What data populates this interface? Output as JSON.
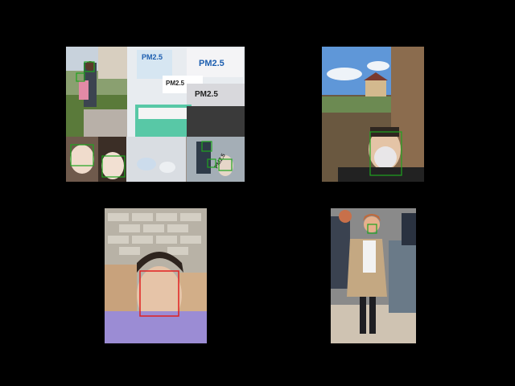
{
  "colors": {
    "background": "#000000",
    "box_mask": "#1fa51f",
    "box_no_mask": "#e02020"
  },
  "panels": [
    {
      "name": "collage-pm25-masks",
      "box_color": "green",
      "box_count": 7,
      "printed_text": {
        "pm1": "PM2.5",
        "pm2": "PM2.5",
        "pm3": "PM2.5",
        "pm4": "PM2.5",
        "pm5": "PM2.5"
      }
    },
    {
      "name": "man-respirator-outdoor",
      "box_color": "green",
      "box_count": 1
    },
    {
      "name": "young-man-no-mask",
      "box_color": "red",
      "box_count": 1
    },
    {
      "name": "street-crowd-masked-woman",
      "box_color": "green",
      "box_count": 1
    }
  ]
}
